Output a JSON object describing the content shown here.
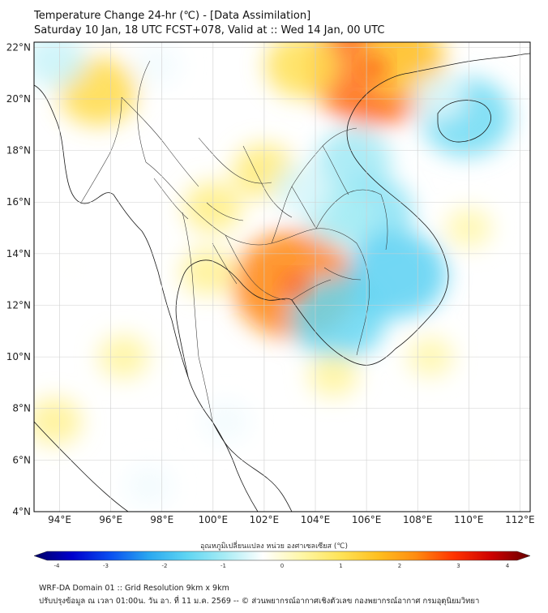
{
  "title": {
    "line1": "Temperature Change 24-hr (℃) - [Data Assimilation]",
    "line2": "Saturday 10 Jan, 18 UTC FCST+078, Valid at :: Wed 14 Jan, 00 UTC"
  },
  "map": {
    "lat_labels": [
      "22°N",
      "20°N",
      "18°N",
      "16°N",
      "14°N",
      "12°N",
      "10°N",
      "8°N",
      "6°N",
      "4°N"
    ],
    "lat_values": [
      22,
      20,
      18,
      16,
      14,
      12,
      10,
      8,
      6,
      4
    ],
    "lon_labels": [
      "94°E",
      "96°E",
      "98°E",
      "100°E",
      "102°E",
      "104°E",
      "106°E",
      "108°E",
      "110°E",
      "112°E"
    ],
    "lon_values": [
      94,
      96,
      98,
      100,
      102,
      104,
      106,
      108,
      110,
      112
    ],
    "extent": {
      "lon_min": 93,
      "lon_max": 112.4,
      "lat_min": 4,
      "lat_max": 22.2
    },
    "gridlines": true,
    "anomalies": [
      {
        "lon": 106.3,
        "lat": 21.2,
        "value": 2.4
      },
      {
        "lon": 107.5,
        "lat": 21.5,
        "value": 1.2
      },
      {
        "lon": 103.5,
        "lat": 21.3,
        "value": 1.0
      },
      {
        "lon": 95.5,
        "lat": 20.3,
        "value": 1.1
      },
      {
        "lon": 93.8,
        "lat": 21.5,
        "value": -0.7
      },
      {
        "lon": 97.8,
        "lat": 21.3,
        "value": -0.4
      },
      {
        "lon": 103.2,
        "lat": 12.8,
        "value": 2.2
      },
      {
        "lon": 102.0,
        "lat": 17.2,
        "value": 0.7
      },
      {
        "lon": 100.0,
        "lat": 15.8,
        "value": 0.6
      },
      {
        "lon": 99.8,
        "lat": 13.3,
        "value": 0.5
      },
      {
        "lon": 105.5,
        "lat": 17.6,
        "value": -1.0
      },
      {
        "lon": 106.2,
        "lat": 15.6,
        "value": -1.2
      },
      {
        "lon": 107.2,
        "lat": 13.2,
        "value": -1.6
      },
      {
        "lon": 104.9,
        "lat": 11.5,
        "value": -1.5
      },
      {
        "lon": 105.0,
        "lat": 15.5,
        "value": -0.9
      },
      {
        "lon": 103.5,
        "lat": 16.5,
        "value": -0.6
      },
      {
        "lon": 109.9,
        "lat": 19.3,
        "value": -1.4
      },
      {
        "lon": 108.8,
        "lat": 20.1,
        "value": -0.5
      },
      {
        "lon": 104.7,
        "lat": 9.3,
        "value": 0.4
      },
      {
        "lon": 96.5,
        "lat": 10.0,
        "value": 0.4
      },
      {
        "lon": 94.5,
        "lat": 13.5,
        "value": -0.3
      },
      {
        "lon": 93.8,
        "lat": 7.5,
        "value": 0.5
      },
      {
        "lon": 100.5,
        "lat": 7.5,
        "value": -0.4
      },
      {
        "lon": 97.5,
        "lat": 5.0,
        "value": -0.4
      },
      {
        "lon": 110.5,
        "lat": 6.0,
        "value": -0.3
      },
      {
        "lon": 108.5,
        "lat": 10.0,
        "value": 0.3
      },
      {
        "lon": 110.0,
        "lat": 15.0,
        "value": 0.3
      }
    ]
  },
  "colorbar": {
    "title": "อุณหภูมิเปลี่ยนแปลง หน่วย องศาเซลเซียส (℃)",
    "tick_labels": [
      "-4",
      "-3",
      "-2",
      "-1",
      "0",
      "1",
      "2",
      "3",
      "4"
    ],
    "tick_values": [
      -4,
      -3,
      -2,
      -1,
      0,
      1,
      2,
      3,
      4
    ],
    "colors": [
      "#000066",
      "#0000cc",
      "#0a4ff0",
      "#2aa7f0",
      "#5fd5f2",
      "#a8ecf5",
      "#ffffff",
      "#fff7a8",
      "#ffe45a",
      "#ffc020",
      "#ff8c10",
      "#ff3300",
      "#cc0000",
      "#660000"
    ]
  },
  "footer": {
    "line1": "WRF-DA Domain 01 :: Grid Resolution 9km x 9km",
    "line2": "ปรับปรุงข้อมูล ณ เวลา 01:00น. วัน อา. ที่ 11 ม.ค. 2569 -- © ส่วนพยากรณ์อากาศเชิงตัวเลข กองพยากรณ์อากาศ กรมอุตุนิยมวิทยา"
  }
}
